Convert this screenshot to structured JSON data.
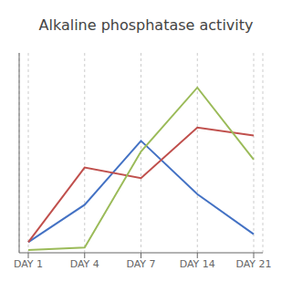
{
  "chart_data": {
    "type": "line",
    "title": "Alkaline phosphatase activity",
    "categories": [
      "DAY 1",
      "DAY 4",
      "DAY 7",
      "DAY 14",
      "DAY 21"
    ],
    "series": [
      {
        "color": "#4472C4",
        "values": [
          0.04,
          0.18,
          0.42,
          0.22,
          0.07
        ]
      },
      {
        "color": "#C0504D",
        "values": [
          0.04,
          0.32,
          0.28,
          0.47,
          0.44
        ]
      },
      {
        "color": "#9BBB59",
        "values": [
          0.01,
          0.02,
          0.38,
          0.62,
          0.35
        ]
      }
    ],
    "ylim": [
      0,
      0.75
    ],
    "grid": "x",
    "tick_labels": "x"
  }
}
